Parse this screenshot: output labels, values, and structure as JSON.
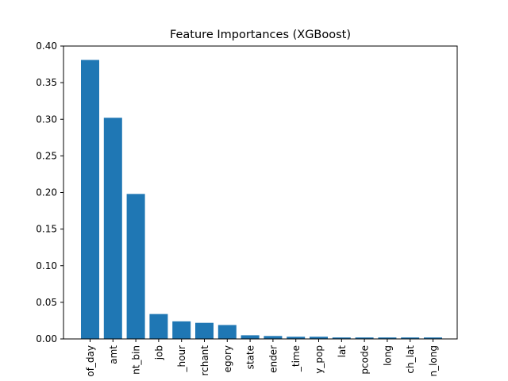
{
  "chart_data": {
    "type": "bar",
    "title": "Feature Importances (XGBoost)",
    "xlabel": "",
    "ylabel": "",
    "ylim": [
      0,
      0.4
    ],
    "yticks": [
      "0.00",
      "0.05",
      "0.10",
      "0.15",
      "0.20",
      "0.25",
      "0.30",
      "0.35",
      "0.40"
    ],
    "categories": [
      "of_day",
      "amt",
      "nt_bin",
      "job",
      "_hour",
      "rchant",
      "egory",
      "state",
      "ender",
      "_time",
      "y_pop",
      "lat",
      "pcode",
      "long",
      "ch_lat",
      "n_long"
    ],
    "values": [
      0.381,
      0.302,
      0.198,
      0.034,
      0.024,
      0.022,
      0.019,
      0.005,
      0.004,
      0.003,
      0.003,
      0.002,
      0.002,
      0.002,
      0.002,
      0.002
    ],
    "bar_color": "#1f77b4",
    "grid": false,
    "legend": "none"
  }
}
